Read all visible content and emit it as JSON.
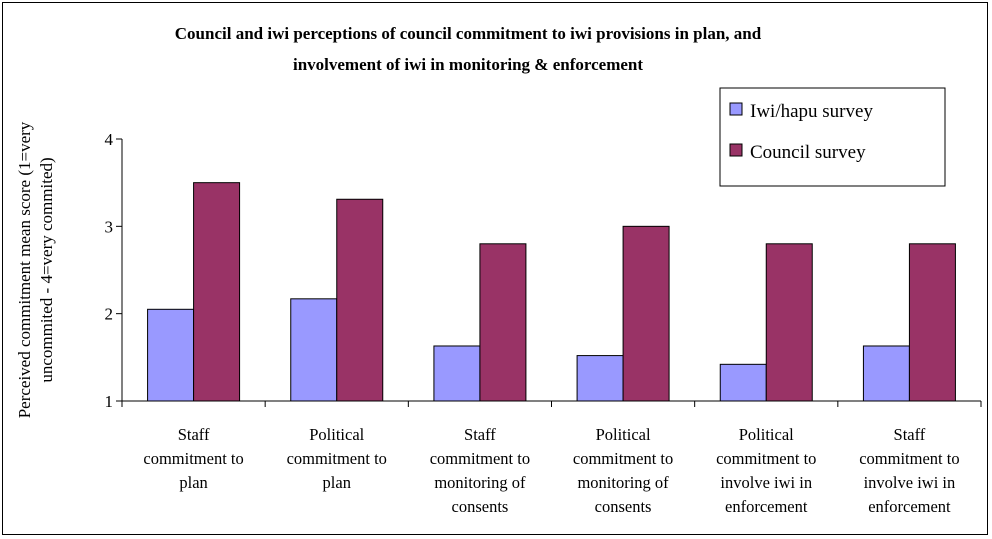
{
  "chart_data": {
    "type": "bar",
    "title_lines": [
      "Council and iwi perceptions of council commitment to iwi provisions in plan, and",
      "involvement of iwi in monitoring & enforcement"
    ],
    "ylabel_lines": [
      "Perceived commitment mean score (1=very",
      "uncommited - 4=very commited)"
    ],
    "xlabel": "",
    "categories": [
      [
        "Staff",
        "commitment to",
        "plan"
      ],
      [
        "Political",
        "commitment to",
        "plan"
      ],
      [
        "Staff",
        "commitment to",
        "monitoring of",
        "consents"
      ],
      [
        "Political",
        "commitment to",
        "monitoring of",
        "consents"
      ],
      [
        "Political",
        "commitment to",
        "involve iwi in",
        "enforcement"
      ],
      [
        "Staff",
        "commitment to",
        "involve iwi in",
        "enforcement"
      ]
    ],
    "series": [
      {
        "name": "Iwi/hapu survey",
        "color": "#9999ff",
        "values": [
          2.05,
          2.17,
          1.63,
          1.52,
          1.42,
          1.63
        ]
      },
      {
        "name": "Council survey",
        "color": "#993366",
        "values": [
          3.5,
          3.31,
          2.8,
          3.0,
          2.8,
          2.8
        ]
      }
    ],
    "ylim": [
      1,
      4
    ],
    "yticks": [
      1,
      2,
      3,
      4
    ],
    "grid": false,
    "legend_position": "top-right"
  }
}
